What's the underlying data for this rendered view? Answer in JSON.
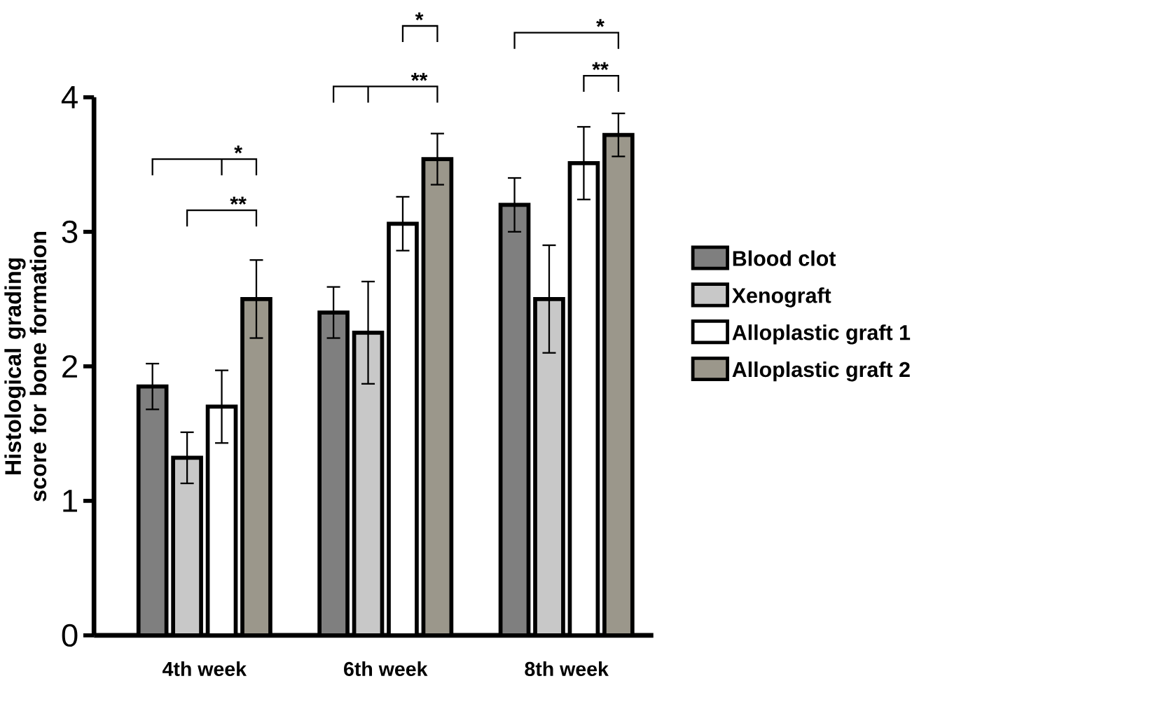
{
  "chart_data": {
    "type": "bar",
    "ylabel": "Histological grading score for bone formation",
    "categories": [
      "4th week",
      "6th week",
      "8th week"
    ],
    "series": [
      {
        "name": "Blood clot",
        "color": "#7f7f7f",
        "values": [
          1.85,
          2.4,
          3.2
        ],
        "errors": [
          0.17,
          0.19,
          0.2
        ]
      },
      {
        "name": "Xenograft",
        "color": "#c8c8c8",
        "values": [
          1.32,
          2.25,
          2.5
        ],
        "errors": [
          0.19,
          0.38,
          0.4
        ]
      },
      {
        "name": "Alloplastic graft 1",
        "color": "#ffffff",
        "values": [
          1.7,
          3.06,
          3.51
        ],
        "errors": [
          0.27,
          0.2,
          0.27
        ]
      },
      {
        "name": "Alloplastic graft 2",
        "color": "#9b978b",
        "values": [
          2.5,
          3.54,
          3.72
        ],
        "errors": [
          0.29,
          0.19,
          0.16
        ]
      }
    ],
    "ylim": [
      0,
      4
    ],
    "yticks": [
      0,
      1,
      2,
      3,
      4
    ],
    "annotations": [
      "*",
      "**",
      "*",
      "**",
      "*",
      "**"
    ],
    "legend": "right",
    "grid": false
  }
}
